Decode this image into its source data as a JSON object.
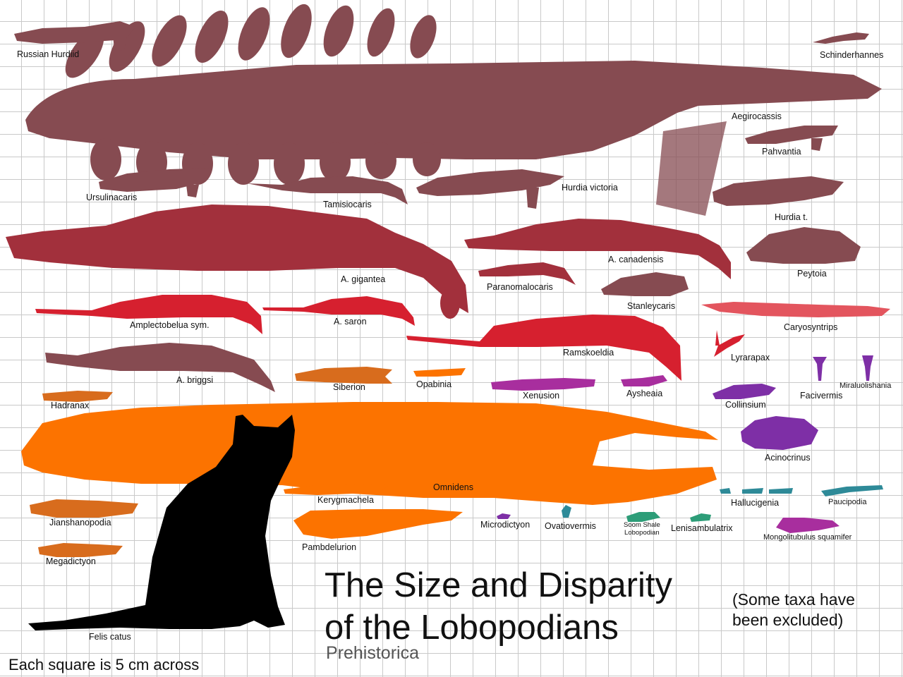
{
  "title": {
    "line1": "The Size and Disparity",
    "line2": "of the Lobopodians"
  },
  "author": "Prehistorica",
  "note": {
    "line1": "(Some taxa have",
    "line2": "been excluded)"
  },
  "scale_note": "Each square is 5 cm across",
  "colors": {
    "hurdiid": "#864b51",
    "anomalocaridid": "#a2303c",
    "amplectobeluid": "#d6202f",
    "tamisiocaridid": "#e3555e",
    "gilled_lobopodian": "#d86c1d",
    "large_lobopodian": "#fc7300",
    "luolishaniid": "#7e2fa6",
    "hallucigeniid": "#2e8a98",
    "xenusiid": "#a82e9e",
    "minor_lobopodian": "#2d9d78",
    "cat": "#000000",
    "grid": "#c9c9c9"
  },
  "taxa": {
    "russian_hurdiid": "Russian Hurdiid",
    "schinderhannes": "Schinderhannes",
    "aegirocassis": "Aegirocassis",
    "pahvantia": "Pahvantia",
    "ursulinacaris": "Ursulinacaris",
    "tamisiocaris": "Tamisiocaris",
    "hurdia_victoria": "Hurdia victoria",
    "hurdia_t": "Hurdia t.",
    "a_gigantea": "A. gigantea",
    "a_canadensis": "A. canadensis",
    "peytoia": "Peytoia",
    "paranomalocaris": "Paranomalocaris",
    "stanleycaris": "Stanleycaris",
    "amplectobelua": "Amplectobelua sym.",
    "a_saron": "A. saron",
    "caryosyntrips": "Caryosyntrips",
    "ramskoeldia": "Ramskoeldia",
    "lyrarapax": "Lyrarapax",
    "a_briggsi": "A. briggsi",
    "siberion": "Siberion",
    "opabinia": "Opabinia",
    "xenusion": "Xenusion",
    "aysheaia": "Aysheaia",
    "facivermis": "Facivermis",
    "miraluolishania": "Miraluolishania",
    "collinsium": "Collinsium",
    "hadranax": "Hadranax",
    "acinocrinus": "Acinocrinus",
    "omnidens": "Omnidens",
    "kerygmachela": "Kerygmachela",
    "hallucigenia": "Hallucigenia",
    "paucipodia": "Paucipodia",
    "jianshanopodia": "Jianshanopodia",
    "microdictyon": "Microdictyon",
    "ovatiovermis": "Ovatiovermis",
    "soom_line1": "Soom Shale",
    "soom_line2": "Lobopodian",
    "lenisambulatrix": "Lenisambulatrix",
    "mongolitubulus": "Mongolitubulus squamifer",
    "pambdelurion": "Pambdelurion",
    "megadictyon": "Megadictyon",
    "felis_catus": "Felis catus"
  }
}
